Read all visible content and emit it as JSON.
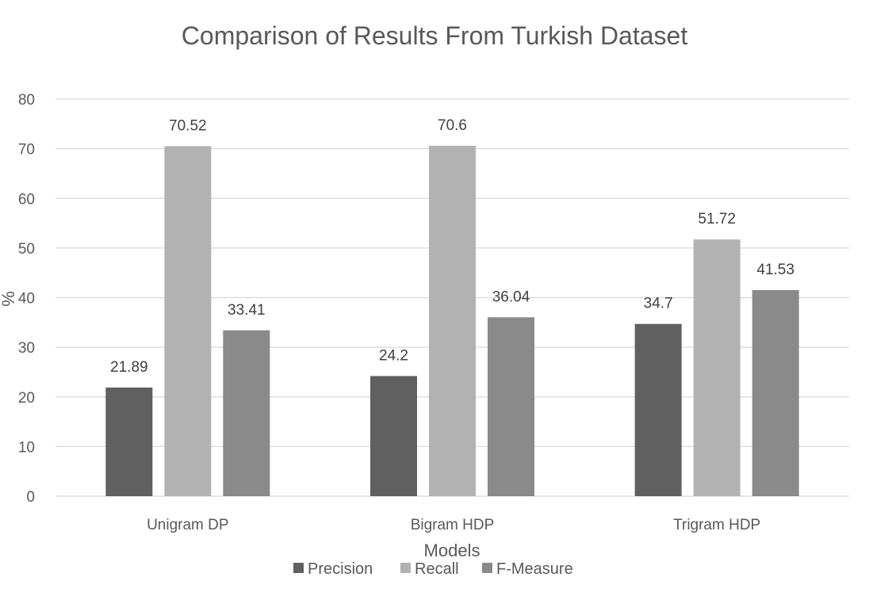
{
  "chart_data": {
    "type": "bar",
    "title": "Comparison of Results From Turkish Dataset",
    "xlabel": "Models",
    "ylabel": "%",
    "ylim": [
      0,
      80
    ],
    "yticks": [
      0,
      10,
      20,
      30,
      40,
      50,
      60,
      70,
      80
    ],
    "grid": true,
    "legend_position": "bottom",
    "categories": [
      "Unigram DP",
      "Bigram HDP",
      "Trigram HDP"
    ],
    "series": [
      {
        "name": "Precision",
        "values": [
          21.89,
          24.2,
          34.7
        ],
        "color": "#606060"
      },
      {
        "name": "Recall",
        "values": [
          70.52,
          70.6,
          51.72
        ],
        "color": "#b2b2b2"
      },
      {
        "name": "F-Measure",
        "values": [
          33.41,
          36.04,
          41.53
        ],
        "color": "#8a8a8a"
      }
    ]
  }
}
